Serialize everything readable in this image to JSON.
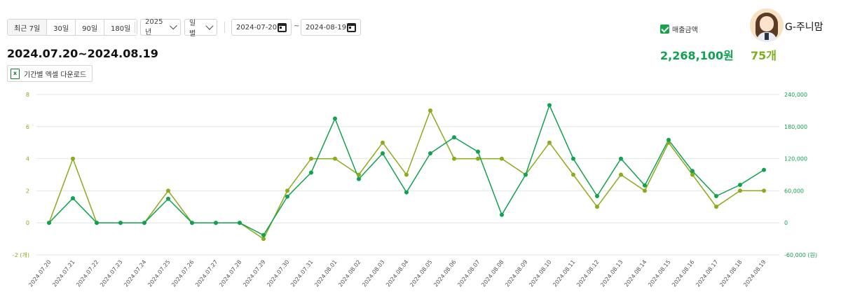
{
  "toolbar": {
    "range_buttons": [
      "최근 7일",
      "30일",
      "90일",
      "180일"
    ],
    "year_select": "2025년",
    "unit_select": "일별",
    "start_date": "2024-07-20",
    "end_date": "2024-08-19",
    "date_separator": "~"
  },
  "period_title": "2024.07.20~2024.08.19",
  "download_label": "기간별 엑셀 다운로드",
  "summary": {
    "sales_checkbox_label": "매출금액",
    "sales_total": "2,268,100원",
    "qty_total": "75개"
  },
  "user": {
    "name": "G-주니맘"
  },
  "colors": {
    "sales": "#12a150",
    "qty": "#8aab1a",
    "grid": "#e6e6e6"
  },
  "chart_data": {
    "type": "line",
    "categories": [
      "2024.07.20",
      "2024.07.21",
      "2024.07.22",
      "2024.07.23",
      "2024.07.24",
      "2024.07.25",
      "2024.07.26",
      "2024.07.27",
      "2024.07.28",
      "2024.07.29",
      "2024.07.30",
      "2024.07.31",
      "2024.08.01",
      "2024.08.02",
      "2024.08.03",
      "2024.08.04",
      "2024.08.05",
      "2024.08.06",
      "2024.08.07",
      "2024.08.08",
      "2024.08.09",
      "2024.08.10",
      "2024.08.11",
      "2024.08.12",
      "2024.08.13",
      "2024.08.14",
      "2024.08.15",
      "2024.08.16",
      "2024.08.17",
      "2024.08.18",
      "2024.08.19"
    ],
    "series": [
      {
        "axis": "left",
        "color": "#8aab1a",
        "values": [
          0,
          4,
          0,
          0,
          0,
          2,
          0,
          0,
          0,
          -1,
          2,
          4,
          4,
          3,
          5,
          3,
          7,
          4,
          4,
          4,
          3,
          5,
          3,
          1,
          3,
          2,
          5,
          3,
          1,
          2,
          2
        ]
      },
      {
        "axis": "right",
        "color": "#12a150",
        "values": [
          0,
          46000,
          0,
          0,
          0,
          45000,
          0,
          0,
          0,
          -23000,
          49000,
          94000,
          195000,
          82000,
          130000,
          57000,
          130000,
          160000,
          133000,
          15000,
          90000,
          220000,
          120000,
          50000,
          120000,
          70000,
          155000,
          97000,
          50000,
          71000,
          99000
        ]
      }
    ],
    "left_axis": {
      "ylim": [
        -2,
        8
      ],
      "ticks": [
        "8",
        "6",
        "4",
        "2",
        "0",
        "-2 (개)"
      ]
    },
    "right_axis": {
      "ylim": [
        -60000,
        240000
      ],
      "ticks": [
        "240,000",
        "180,000",
        "120,000",
        "60,000",
        "0",
        "-60,000 (원)"
      ]
    },
    "grid": true
  }
}
